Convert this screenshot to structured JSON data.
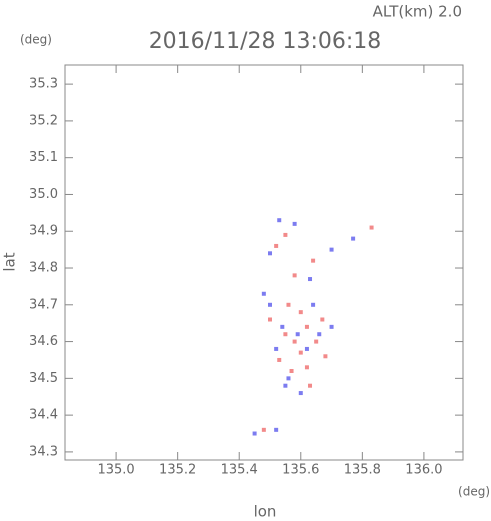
{
  "chart_data": {
    "type": "scatter",
    "title": "2016/11/28 13:06:18",
    "subtitle": "ALT(km) 2.0",
    "y_unit": "(deg)",
    "x_unit": "(deg)",
    "x_label": "lon",
    "y_label": "lat",
    "xlim": [
      134.834,
      136.127
    ],
    "ylim": [
      34.278,
      35.352
    ],
    "xticks": [
      {
        "value": 135.0,
        "label": "135.0"
      },
      135.2,
      135.4,
      135.6,
      135.8,
      {
        "value": 136.0,
        "label": "136.0"
      }
    ],
    "yticks": [
      35.3,
      35.2,
      35.1,
      {
        "value": 35.0,
        "label": "35.0"
      },
      34.9,
      34.8,
      34.7,
      34.6,
      34.5,
      34.4,
      34.3
    ],
    "series": [
      {
        "color": "#f28a8a",
        "x": [
          135.55,
          135.58,
          135.62,
          135.6,
          135.53,
          135.65,
          135.57,
          135.63,
          135.5,
          135.6,
          135.67,
          135.52,
          135.58,
          135.64,
          135.83,
          135.55,
          135.48,
          135.62,
          135.56,
          135.68
        ],
        "y": [
          34.62,
          34.6,
          34.64,
          34.57,
          34.55,
          34.6,
          34.52,
          34.48,
          34.66,
          34.68,
          34.66,
          34.86,
          34.78,
          34.82,
          34.91,
          34.89,
          34.36,
          34.53,
          34.7,
          34.56
        ]
      },
      {
        "color": "#7c7cf0",
        "x": [
          135.5,
          135.54,
          135.59,
          135.62,
          135.56,
          135.52,
          135.66,
          135.48,
          135.6,
          135.64,
          135.5,
          135.58,
          135.7,
          135.77,
          135.63,
          135.53,
          135.45,
          135.52,
          135.55,
          135.7
        ],
        "y": [
          34.7,
          34.64,
          34.62,
          34.58,
          34.5,
          34.58,
          34.62,
          34.73,
          34.46,
          34.7,
          34.84,
          34.92,
          34.85,
          34.88,
          34.77,
          34.93,
          34.35,
          34.36,
          34.48,
          34.64
        ]
      }
    ]
  }
}
